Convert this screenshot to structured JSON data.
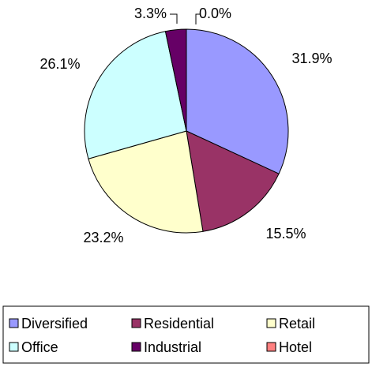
{
  "chart_data": {
    "type": "pie",
    "categories": [
      "Diversified",
      "Residential",
      "Retail",
      "Office",
      "Industrial",
      "Hotel"
    ],
    "values": [
      31.9,
      15.5,
      23.2,
      26.1,
      3.3,
      0.0
    ],
    "value_labels": [
      "31.9%",
      "15.5%",
      "23.2%",
      "26.1%",
      "3.3%",
      "0.0%"
    ],
    "colors": [
      "#9999ff",
      "#993366",
      "#ffffcc",
      "#ccffff",
      "#660066",
      "#ff8080"
    ],
    "legend": "bottom"
  }
}
